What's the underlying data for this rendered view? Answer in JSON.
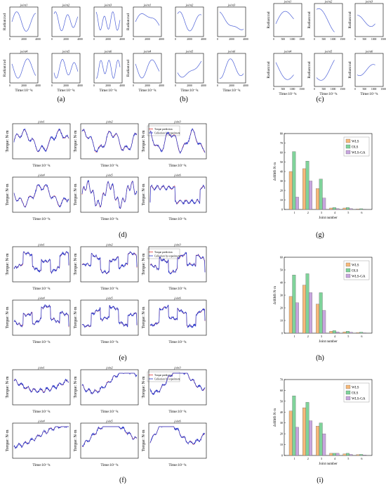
{
  "panels": {
    "a": {
      "label": "(a)",
      "titles": [
        "joint1",
        "joint2",
        "joint3",
        "joint4",
        "joint5",
        "joint6"
      ],
      "ylabel": "Radian:rad",
      "xlabel": "Time:10⁻²s",
      "xticks": [
        "0",
        "2000",
        "4000"
      ]
    },
    "b": {
      "label": "(b)",
      "titles": [
        "joint1",
        "joint2",
        "joint3",
        "joint4",
        "joint5",
        "joint6"
      ],
      "ylabel": "Radian:rad",
      "xlabel": "Time:10⁻²s",
      "xticks": [
        "0",
        "2000",
        "4000"
      ]
    },
    "c": {
      "label": "(c)",
      "titles": [
        "joint1",
        "joint2",
        "joint3",
        "joint4",
        "joint5",
        "joint6"
      ],
      "ylabel": "Radian:rad",
      "xlabel": "Time:10⁻²s",
      "xticks": [
        "0",
        "500",
        "1000",
        "1500"
      ]
    },
    "d": {
      "label": "(d)",
      "titles": [
        "joint1",
        "joint2",
        "joint3",
        "joint4",
        "joint5",
        "joint6"
      ],
      "ylabel": "Torque: N·m",
      "xlabel": "Time:10⁻²s",
      "legend": [
        "Torque prediction",
        "Collection by experiment"
      ]
    },
    "e": {
      "label": "(e)",
      "titles": [
        "joint1",
        "joint2",
        "joint3",
        "joint4",
        "joint5",
        "joint6"
      ],
      "ylabel": "Torque: N·m",
      "xlabel": "Time:10⁻²s",
      "legend": [
        "Torque prediction",
        "Collection by experiment"
      ]
    },
    "f": {
      "label": "(f)",
      "titles": [
        "joint1",
        "joint2",
        "joint3",
        "joint4",
        "joint5",
        "joint6"
      ],
      "ylabel": "Torque: N·m",
      "xlabel": "Time:10⁻²s",
      "legend": [
        "Torque prediction",
        "Collection by experiment"
      ]
    },
    "g": {
      "label": "(g)"
    },
    "h": {
      "label": "(h)"
    },
    "i": {
      "label": "(i)"
    }
  },
  "chart_data": [
    {
      "type": "bar",
      "id": "g",
      "categories": [
        "1",
        "2",
        "3",
        "4",
        "5",
        "6"
      ],
      "xlabel": "Joint number",
      "ylabel": "ΔτRMS N·m",
      "ylim": [
        0,
        80
      ],
      "yticks": [
        0,
        10,
        20,
        30,
        40,
        50,
        60,
        70,
        80
      ],
      "legend_position": "top-right",
      "series": [
        {
          "name": "WLS",
          "color": "#f7b97a",
          "values": [
            40,
            43,
            22,
            1.5,
            1.5,
            0.5
          ]
        },
        {
          "name": "OLS",
          "color": "#7fd39a",
          "values": [
            61,
            51,
            32,
            2.0,
            2.0,
            0.8
          ]
        },
        {
          "name": "WLS-GA",
          "color": "#c8a6df",
          "values": [
            13,
            30,
            12,
            1.0,
            1.0,
            0.3
          ]
        }
      ]
    },
    {
      "type": "bar",
      "id": "h",
      "categories": [
        "1",
        "2",
        "3",
        "4",
        "5",
        "6"
      ],
      "xlabel": "Joint number",
      "ylabel": "ΔτRMS N·m",
      "ylim": [
        0,
        60
      ],
      "yticks": [
        0,
        10,
        20,
        30,
        40,
        50,
        60
      ],
      "legend_position": "top-right",
      "series": [
        {
          "name": "WLS",
          "color": "#f7b97a",
          "values": [
            29,
            38,
            23,
            1.5,
            1.0,
            0.5
          ]
        },
        {
          "name": "OLS",
          "color": "#7fd39a",
          "values": [
            46,
            47,
            32,
            2.0,
            1.5,
            0.8
          ]
        },
        {
          "name": "WLS-GA",
          "color": "#c8a6df",
          "values": [
            24,
            32,
            18,
            1.0,
            0.8,
            0.3
          ]
        }
      ]
    },
    {
      "type": "bar",
      "id": "i",
      "categories": [
        "1",
        "2",
        "3",
        "4",
        "5",
        "6"
      ],
      "xlabel": "Joint number",
      "ylabel": "ΔτRMS N·m",
      "ylim": [
        0,
        70
      ],
      "yticks": [
        0,
        10,
        20,
        30,
        40,
        50,
        60,
        70
      ],
      "legend_position": "top-right",
      "series": [
        {
          "name": "WLS",
          "color": "#f7b97a",
          "values": [
            41,
            44,
            27,
            2.0,
            1.5,
            0.8
          ]
        },
        {
          "name": "OLS",
          "color": "#7fd39a",
          "values": [
            55,
            49,
            30,
            2.0,
            2.0,
            1.0
          ]
        },
        {
          "name": "WLS-GA",
          "color": "#c8a6df",
          "values": [
            26,
            32,
            20,
            2.0,
            1.0,
            0.5
          ]
        }
      ]
    }
  ]
}
